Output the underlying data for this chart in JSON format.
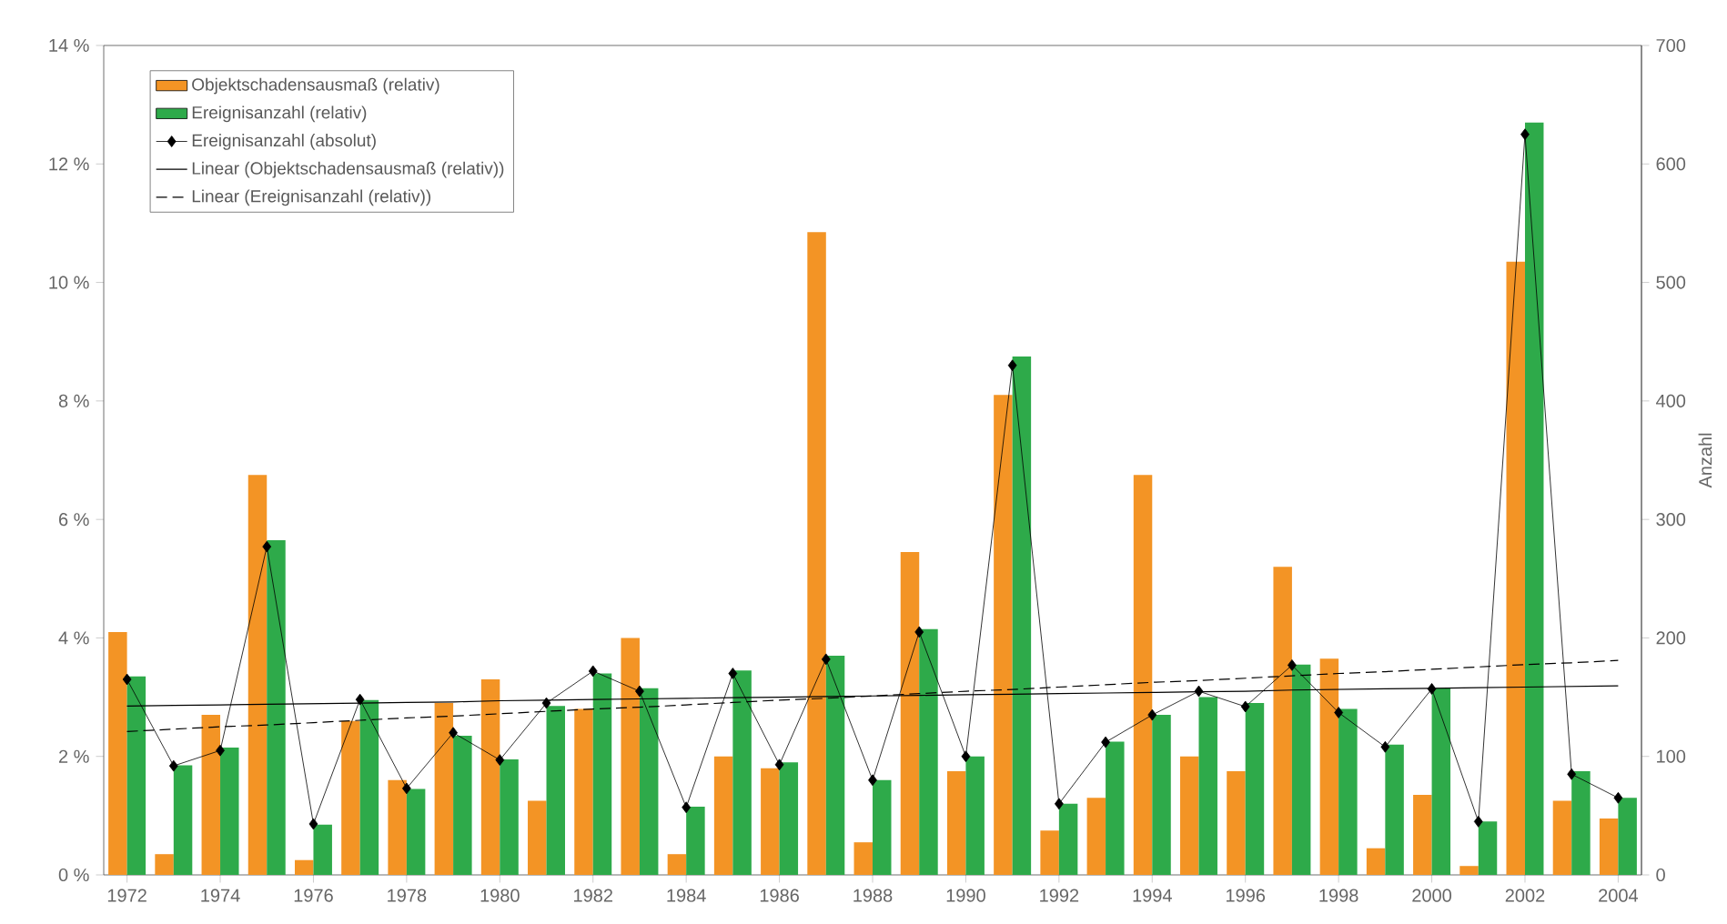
{
  "chart_data": {
    "type": "bar",
    "x": [
      1972,
      1973,
      1974,
      1975,
      1976,
      1977,
      1978,
      1979,
      1980,
      1981,
      1982,
      1983,
      1984,
      1985,
      1986,
      1987,
      1988,
      1989,
      1990,
      1991,
      1992,
      1993,
      1994,
      1995,
      1996,
      1997,
      1998,
      1999,
      2000,
      2001,
      2002,
      2003,
      2004
    ],
    "xlim": [
      1971.5,
      2004.5
    ],
    "xticks": [
      1972,
      1974,
      1976,
      1978,
      1980,
      1982,
      1984,
      1986,
      1988,
      1990,
      1992,
      1994,
      1996,
      1998,
      2000,
      2002,
      2004
    ],
    "ylim": [
      0,
      14
    ],
    "yticks": [
      {
        "value": 0,
        "label": "0 %"
      },
      {
        "value": 2,
        "label": "2 %"
      },
      {
        "value": 4,
        "label": "4 %"
      },
      {
        "value": 6,
        "label": "6 %"
      },
      {
        "value": 8,
        "label": "8 %"
      },
      {
        "value": 10,
        "label": "10 %"
      },
      {
        "value": 12,
        "label": "12 %"
      },
      {
        "value": 14,
        "label": "14 %"
      }
    ],
    "y2lim": [
      0,
      700
    ],
    "y2ticks": [
      0,
      100,
      200,
      300,
      400,
      500,
      600,
      700
    ],
    "y2label": "Anzahl",
    "legend": "top left",
    "series": [
      {
        "name": "Objektschadensausmaß (relativ)",
        "color": "#f39425",
        "values": [
          4.1,
          0.35,
          2.7,
          6.75,
          0.25,
          2.6,
          1.6,
          2.9,
          3.3,
          1.25,
          2.8,
          4.0,
          0.35,
          2.0,
          1.8,
          10.85,
          0.55,
          5.45,
          1.75,
          8.1,
          0.75,
          1.3,
          6.75,
          2.0,
          1.75,
          5.2,
          3.65,
          0.45,
          1.35,
          0.15,
          10.35,
          1.25,
          0.95
        ]
      },
      {
        "name": "Ereignisanzahl (relativ)",
        "color": "#2eaa4a",
        "values": [
          3.35,
          1.85,
          2.15,
          5.65,
          0.85,
          2.95,
          1.45,
          2.35,
          1.95,
          2.85,
          3.4,
          3.15,
          1.15,
          3.45,
          1.9,
          3.7,
          1.6,
          4.15,
          2.0,
          8.75,
          1.2,
          2.25,
          2.7,
          3.0,
          2.9,
          3.55,
          2.8,
          2.2,
          3.15,
          0.9,
          12.7,
          1.75,
          1.3
        ]
      },
      {
        "name": "Ereignisanzahl (absolut)",
        "type": "line",
        "axis": "y2",
        "color": "#000000",
        "marker": "diamond",
        "values": [
          165,
          92,
          105,
          277,
          43,
          148,
          73,
          120,
          97,
          145,
          172,
          155,
          57,
          170,
          93,
          182,
          80,
          205,
          100,
          430,
          60,
          112,
          135,
          155,
          142,
          177,
          137,
          108,
          157,
          45,
          625,
          85,
          65
        ]
      },
      {
        "name": "Linear (Objektschadensausmaß (relativ))",
        "type": "line",
        "color": "#000000",
        "line_style": "solid",
        "values": [
          2.85,
          2.86,
          2.87,
          2.88,
          2.89,
          2.9,
          2.91,
          2.92,
          2.94,
          2.95,
          2.96,
          2.97,
          2.98,
          2.99,
          3.0,
          3.01,
          3.02,
          3.03,
          3.04,
          3.05,
          3.06,
          3.07,
          3.08,
          3.09,
          3.1,
          3.12,
          3.13,
          3.14,
          3.15,
          3.16,
          3.17,
          3.18,
          3.19
        ]
      },
      {
        "name": "Linear (Ereignisanzahl (relativ))",
        "type": "line",
        "color": "#000000",
        "line_style": "dashed",
        "values": [
          2.42,
          2.46,
          2.5,
          2.53,
          2.57,
          2.61,
          2.65,
          2.68,
          2.72,
          2.76,
          2.8,
          2.83,
          2.87,
          2.91,
          2.95,
          2.98,
          3.02,
          3.06,
          3.1,
          3.13,
          3.17,
          3.21,
          3.25,
          3.28,
          3.32,
          3.36,
          3.4,
          3.43,
          3.47,
          3.51,
          3.55,
          3.58,
          3.62
        ]
      }
    ]
  }
}
